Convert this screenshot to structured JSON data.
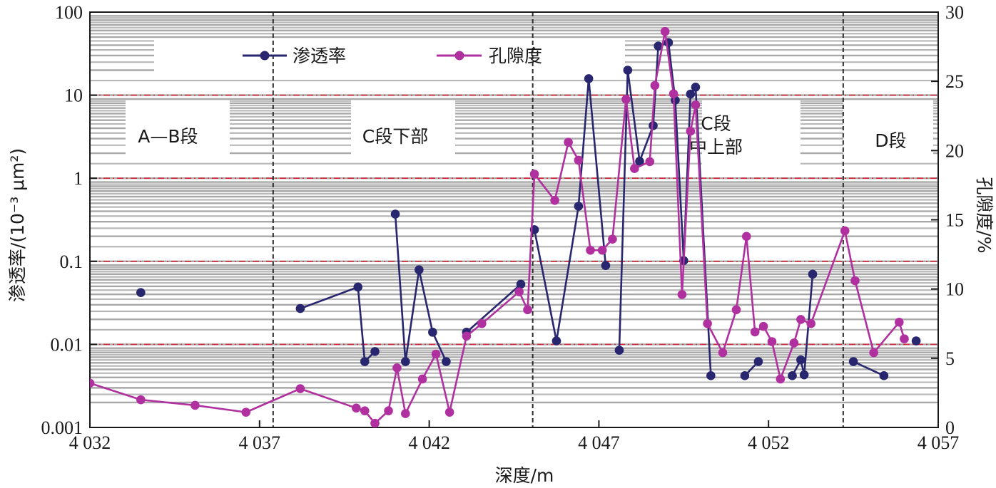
{
  "chart_data": {
    "type": "line",
    "xlabel": "深度/m",
    "ylabel_left": "渗透率/(10⁻³ μm²)",
    "ylabel_right": "孔隙度/%",
    "xlim": [
      4032,
      4057
    ],
    "x_ticks": [
      {
        "value": 4032,
        "label": "4 032"
      },
      {
        "value": 4037,
        "label": "4 037"
      },
      {
        "value": 4042,
        "label": "4 042"
      },
      {
        "value": 4047,
        "label": "4 047"
      },
      {
        "value": 4052,
        "label": "4 052"
      },
      {
        "value": 4057,
        "label": "4 057"
      }
    ],
    "ylim_left": [
      0.001,
      100
    ],
    "yscale_left": "log",
    "y_ticks_left": [
      {
        "value": 0.001,
        "label": "0.001"
      },
      {
        "value": 0.01,
        "label": "0.01"
      },
      {
        "value": 0.1,
        "label": "0.1"
      },
      {
        "value": 1,
        "label": "1"
      },
      {
        "value": 10,
        "label": "10"
      },
      {
        "value": 100,
        "label": "100"
      }
    ],
    "ylim_right": [
      0,
      30
    ],
    "y_ticks_right": [
      {
        "value": 0,
        "label": "0"
      },
      {
        "value": 5,
        "label": "5"
      },
      {
        "value": 10,
        "label": "10"
      },
      {
        "value": 15,
        "label": "15"
      },
      {
        "value": 20,
        "label": "20"
      },
      {
        "value": 25,
        "label": "25"
      },
      {
        "value": 30,
        "label": "30"
      }
    ],
    "legend_position": "top",
    "zone_boundaries": [
      4037.4,
      4045.05,
      4054.2
    ],
    "red_reference_lines": [
      0.01,
      0.1,
      1,
      10
    ],
    "zones": [
      {
        "label": "A—B段",
        "x": 4034.3
      },
      {
        "label": "C段下部",
        "x": 4041.0
      },
      {
        "label": "C段",
        "x": 4050.45
      },
      {
        "label": "中上部",
        "x": 4050.45
      },
      {
        "label": "D段",
        "x": 4055.6
      }
    ],
    "series": [
      {
        "name": "渗透率",
        "axis": "left",
        "color": "#27266f",
        "segments": [
          [
            [
              4033.5,
              0.042
            ]
          ],
          [
            [
              4038.2,
              0.027
            ],
            [
              4039.9,
              0.049
            ],
            [
              4040.1,
              0.0062
            ],
            [
              4040.4,
              0.0082
            ]
          ],
          [
            [
              4041.0,
              0.37
            ],
            [
              4041.3,
              0.0062
            ],
            [
              4041.7,
              0.079
            ],
            [
              4042.1,
              0.014
            ],
            [
              4042.5,
              0.0062
            ]
          ],
          [
            [
              4043.1,
              0.014
            ],
            [
              4044.7,
              0.053
            ]
          ],
          [
            [
              4045.1,
              0.24
            ],
            [
              4045.75,
              0.011
            ],
            [
              4046.4,
              0.46
            ],
            [
              4046.7,
              15.8
            ],
            [
              4047.2,
              0.089
            ]
          ],
          [
            [
              4047.6,
              0.0085
            ],
            [
              4047.85,
              20.0
            ],
            [
              4048.2,
              1.6
            ],
            [
              4048.6,
              4.3
            ],
            [
              4048.75,
              39.0
            ],
            [
              4049.05,
              43.0
            ],
            [
              4049.25,
              8.7
            ],
            [
              4049.5,
              0.102
            ],
            [
              4049.7,
              10.3
            ],
            [
              4049.85,
              12.5
            ],
            [
              4050.3,
              0.0042
            ]
          ],
          [
            [
              4051.3,
              0.0042
            ],
            [
              4051.7,
              0.0062
            ]
          ],
          [
            [
              4052.7,
              0.0042
            ],
            [
              4052.95,
              0.0065
            ],
            [
              4053.05,
              0.0043
            ],
            [
              4053.3,
              0.07
            ]
          ],
          [
            [
              4054.5,
              0.0062
            ],
            [
              4055.4,
              0.0042
            ]
          ],
          [
            [
              4056.35,
              0.011
            ]
          ]
        ]
      },
      {
        "name": "孔隙度",
        "axis": "right",
        "color": "#b0309f",
        "segments": [
          [
            [
              4032.0,
              3.2
            ],
            [
              4033.5,
              2.0
            ],
            [
              4035.1,
              1.6
            ],
            [
              4036.6,
              1.1
            ],
            [
              4038.2,
              2.8
            ],
            [
              4039.85,
              1.4
            ],
            [
              4040.1,
              1.2
            ],
            [
              4040.4,
              0.3
            ],
            [
              4040.8,
              1.2
            ],
            [
              4041.05,
              4.3
            ],
            [
              4041.3,
              1.0
            ],
            [
              4041.8,
              3.5
            ],
            [
              4042.2,
              5.3
            ],
            [
              4042.6,
              1.1
            ],
            [
              4043.1,
              6.6
            ],
            [
              4043.55,
              7.5
            ],
            [
              4044.65,
              9.8
            ],
            [
              4044.9,
              8.5
            ],
            [
              4045.1,
              18.3
            ],
            [
              4045.7,
              16.4
            ],
            [
              4046.1,
              20.6
            ],
            [
              4046.4,
              19.3
            ],
            [
              4046.75,
              12.8
            ],
            [
              4047.1,
              12.8
            ],
            [
              4047.4,
              13.6
            ],
            [
              4047.8,
              23.7
            ],
            [
              4048.05,
              18.7
            ],
            [
              4048.5,
              19.2
            ],
            [
              4048.65,
              24.7
            ],
            [
              4048.95,
              28.6
            ],
            [
              4049.2,
              24.1
            ],
            [
              4049.45,
              9.6
            ],
            [
              4049.7,
              21.4
            ],
            [
              4049.85,
              23.3
            ],
            [
              4050.2,
              7.5
            ],
            [
              4050.65,
              5.4
            ],
            [
              4051.05,
              8.5
            ],
            [
              4051.35,
              13.8
            ],
            [
              4051.6,
              6.9
            ],
            [
              4051.85,
              7.3
            ],
            [
              4052.1,
              6.2
            ],
            [
              4052.35,
              3.5
            ],
            [
              4052.75,
              6.1
            ],
            [
              4052.95,
              7.8
            ],
            [
              4053.25,
              7.5
            ],
            [
              4054.25,
              14.2
            ],
            [
              4054.55,
              10.6
            ],
            [
              4055.1,
              5.4
            ],
            [
              4055.85,
              7.6
            ],
            [
              4056.0,
              6.4
            ]
          ]
        ]
      }
    ]
  }
}
